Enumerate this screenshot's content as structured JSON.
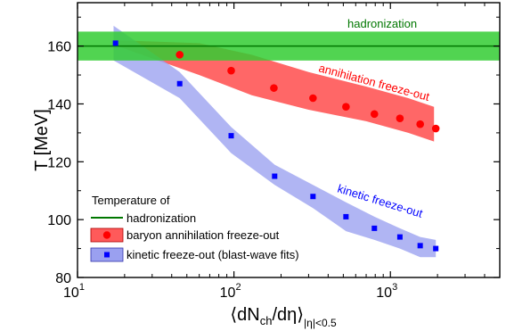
{
  "chart_data": {
    "type": "scatter",
    "title": "",
    "xlabel": "⟨dN",
    "xlabel_sub1": "ch",
    "xlabel_mid": "/dη⟩",
    "xlabel_sub2": "|η|<0.5",
    "ylabel": "T [MeV]",
    "xscale": "log",
    "xlim": [
      10,
      5000
    ],
    "ylim": [
      80,
      175
    ],
    "x_ticks": [
      {
        "value": 10,
        "base": "10",
        "exp": "1"
      },
      {
        "value": 100,
        "base": "10",
        "exp": "2"
      },
      {
        "value": 1000,
        "base": "10",
        "exp": "3"
      }
    ],
    "y_ticks": [
      80,
      100,
      120,
      140,
      160
    ],
    "hadronization": {
      "T": 160,
      "band": [
        155,
        165
      ],
      "label": "hadronization",
      "line_color": "#007700",
      "band_color": "#33cc33"
    },
    "series": [
      {
        "name": "baryon annihilation freeze-out",
        "marker": "circle",
        "color": "#ff0000",
        "band_color": "#ff5a5a",
        "x": [
          45,
          96,
          180,
          320,
          520,
          790,
          1150,
          1550,
          1950
        ],
        "y": [
          157,
          151.5,
          145.5,
          142,
          139,
          136.5,
          135,
          133,
          131.5
        ],
        "band_x": [
          18,
          60,
          130,
          300,
          700,
          1300,
          1900
        ],
        "band_upper": [
          162,
          161,
          157,
          151,
          146,
          142,
          139
        ],
        "band_lower": [
          160,
          150,
          143,
          138,
          134,
          130,
          127
        ],
        "annotation": "annihilation freeze-out"
      },
      {
        "name": "kinetic freeze-out (blast-wave fits)",
        "marker": "square",
        "color": "#0000ff",
        "band_color": "#9aa0f0",
        "x": [
          17.5,
          45,
          96,
          182,
          320,
          520,
          790,
          1150,
          1550,
          1950
        ],
        "y": [
          161,
          147,
          129,
          115,
          108,
          101,
          97,
          94,
          91,
          90
        ],
        "band_x": [
          17,
          45,
          96,
          182,
          320,
          520,
          790,
          1150,
          1550,
          1950
        ],
        "band_upper": [
          167,
          151,
          132,
          119,
          112,
          106,
          101,
          97,
          94,
          93
        ],
        "band_lower": [
          155,
          142,
          123,
          112,
          104,
          96,
          93,
          90,
          87,
          87
        ],
        "annotation": "kinetic freeze-out"
      }
    ],
    "legend": {
      "position": "bottom-left",
      "title": "Temperature of",
      "entries": [
        "hadronization",
        "baryon annihilation freeze-out",
        "kinetic freeze-out (blast-wave fits)"
      ]
    }
  }
}
